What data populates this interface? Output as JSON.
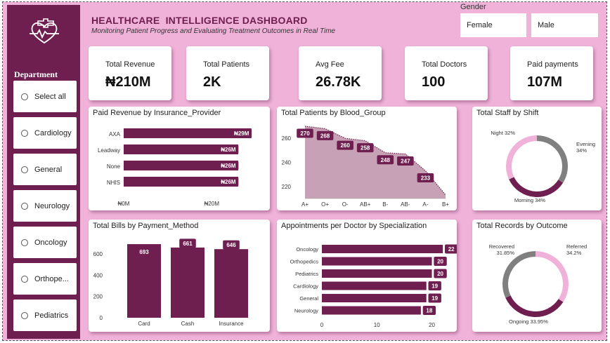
{
  "header": {
    "title": "HEALTHCARE  INTELLIGENCE DASHBOARD",
    "subtitle": "Monitoring Patient Progress and Evaluating Treatment Outcomes in Real Time"
  },
  "gender": {
    "label": "Gender",
    "options": [
      "Female",
      "Male"
    ]
  },
  "sidebar": {
    "logo_icon": "medical-heart-cross-icon",
    "title": "Department",
    "items": [
      "Select all",
      "Cardiology",
      "General",
      "Neurology",
      "Oncology",
      "Orthope...",
      "Pediatrics"
    ]
  },
  "kpis": [
    {
      "label": "Total Revenue",
      "value": "₦210M"
    },
    {
      "label": "Total Patients",
      "value": "2K"
    },
    {
      "label": "Avg Fee",
      "value": "26.78K"
    },
    {
      "label": "Total Doctors",
      "value": "100"
    },
    {
      "label": "Paid payments",
      "value": "107M"
    }
  ],
  "colors": {
    "accent": "#6e1e4f",
    "background": "#f0b2d9",
    "pink": "#f0b2d9",
    "grey": "#808080",
    "area": "#c7a1b5"
  },
  "chart_data": [
    {
      "type": "bar",
      "orientation": "horizontal",
      "title": "Paid Revenue by Insurance_Provider",
      "categories": [
        "AXA",
        "Leadway",
        "None",
        "NHIS"
      ],
      "values": [
        29,
        26,
        26,
        26
      ],
      "data_labels": [
        "₦29M",
        "₦26M",
        "₦26M",
        "₦26M"
      ],
      "xticks": [
        0,
        20
      ],
      "xtick_labels": [
        "₦0M",
        "₦20M"
      ],
      "xlim": [
        0,
        30
      ]
    },
    {
      "type": "area",
      "title": "Total Patients by Blood_Group",
      "categories": [
        "A+",
        "O+",
        "O-",
        "AB+",
        "B-",
        "AB-",
        "A-",
        "B+"
      ],
      "values": [
        270,
        268,
        260,
        258,
        248,
        247,
        233,
        213
      ],
      "data_labels": [
        "270",
        "268",
        "260",
        "258",
        "248",
        "247",
        "233",
        ""
      ],
      "ylim": [
        210,
        270
      ],
      "yticks": [
        220,
        240,
        260
      ]
    },
    {
      "type": "pie",
      "donut": true,
      "title": "Total Staff by Shift",
      "slices": [
        {
          "label": "Evening",
          "display": "Evening\n34%",
          "value": 34
        },
        {
          "label": "Morning",
          "display": "Morning 34%",
          "value": 34
        },
        {
          "label": "Night",
          "display": "Night 32%",
          "value": 32
        }
      ]
    },
    {
      "type": "bar",
      "title": "Total Bills by Payment_Method",
      "categories": [
        "Card",
        "Cash",
        "Insurance"
      ],
      "values": [
        693,
        661,
        646
      ],
      "ylim": [
        0,
        700
      ],
      "yticks": [
        0,
        200,
        400,
        600
      ]
    },
    {
      "type": "bar",
      "orientation": "horizontal",
      "title": "Appointments per Doctor by Specialization",
      "categories": [
        "Oncology",
        "Orthopedics",
        "Pediatrics",
        "Cardiology",
        "General",
        "Neurology"
      ],
      "values": [
        22,
        20,
        20,
        19,
        19,
        18
      ],
      "xlim": [
        0,
        23
      ],
      "xticks": [
        0,
        10,
        20
      ]
    },
    {
      "type": "pie",
      "donut": true,
      "title": "Total Records by Outcome",
      "slices": [
        {
          "label": "Referred",
          "display": "Referred\n34.2%",
          "value": 34.2
        },
        {
          "label": "Ongoing",
          "display": "Ongoing 33.95%",
          "value": 33.95
        },
        {
          "label": "Recovered",
          "display": "Recovered\n31.85%",
          "value": 31.85
        }
      ]
    }
  ]
}
